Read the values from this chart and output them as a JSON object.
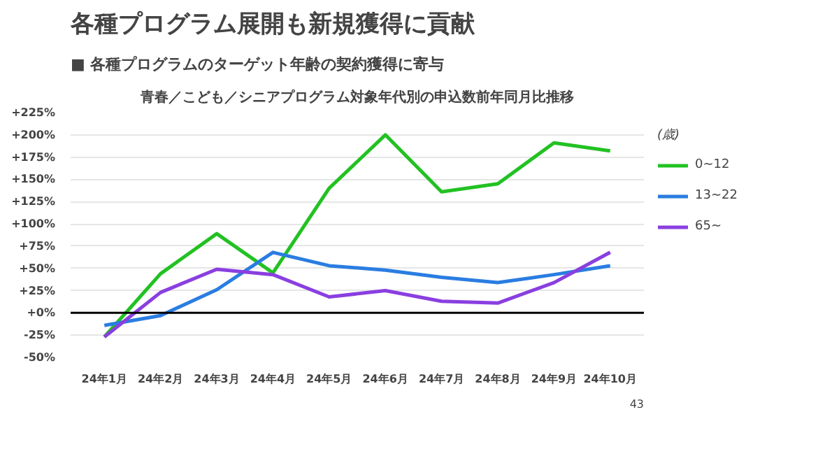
{
  "chart_data": {
    "type": "line",
    "title": "各種プログラム展開も新規獲得に貢献",
    "subtitle": "■ 各種プログラムのターゲット年齢の契約獲得に寄与",
    "annotations": [
      "青春／こども／シニアプログラム対象年代別の申込数前年同月比推移",
      "43"
    ],
    "categories": [
      "24年1月",
      "24年2月",
      "24年3月",
      "24年4月",
      "24年5月",
      "24年6月",
      "24年7月",
      "24年8月",
      "24年9月",
      "24年10月"
    ],
    "series": [
      {
        "name": "0~12",
        "color": "#22c122",
        "values": [
          -27,
          44,
          89,
          45,
          140,
          200,
          136,
          145,
          191,
          182
        ]
      },
      {
        "name": "13~22",
        "color": "#2a7de1",
        "values": [
          -14,
          -3,
          26,
          68,
          53,
          48,
          40,
          34,
          43,
          53
        ]
      },
      {
        "name": "65~",
        "color": "#8a3fe0",
        "values": [
          -27,
          23,
          49,
          43,
          18,
          25,
          13,
          11,
          34,
          68
        ]
      }
    ],
    "legend_title": "(歳)",
    "legend": "right",
    "grid": "y",
    "marker": "none",
    "line_style": "solid",
    "ylim": [
      -50,
      225
    ],
    "yticks": [
      {
        "value": -50,
        "label": "-50%"
      },
      {
        "value": -25,
        "label": "-25%"
      },
      {
        "value": 0,
        "label": "+0%"
      },
      {
        "value": 25,
        "label": "+25%"
      },
      {
        "value": 50,
        "label": "+50%"
      },
      {
        "value": 75,
        "label": "+75%"
      },
      {
        "value": 100,
        "label": "+100%"
      },
      {
        "value": 125,
        "label": "+125%"
      },
      {
        "value": 150,
        "label": "+150%"
      },
      {
        "value": 175,
        "label": "+175%"
      },
      {
        "value": 200,
        "label": "+200%"
      },
      {
        "value": 225,
        "label": "+225%"
      }
    ],
    "ref_lines": [
      {
        "axis": "y",
        "value": 0,
        "color": "#000000"
      }
    ]
  }
}
